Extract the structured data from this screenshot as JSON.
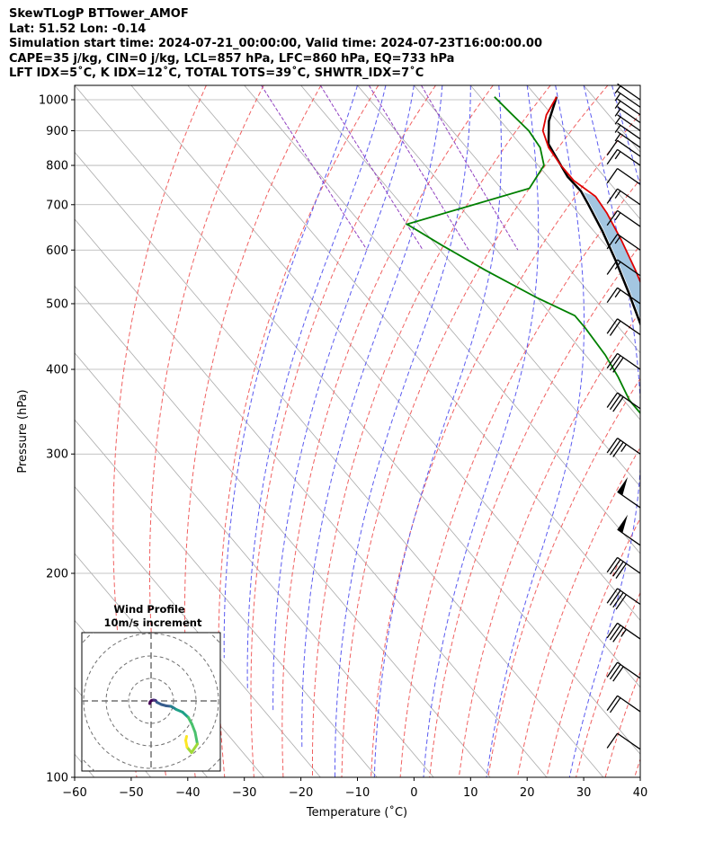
{
  "header": {
    "line1": "SkewTLogP BTTower_AMOF",
    "line2": "Lat: 51.52   Lon: -0.14",
    "line3": "Simulation start time: 2024-07-21_00:00:00, Valid time: 2024-07-23T16:00:00.00",
    "line4": "CAPE=35 j/kg, CIN=0 j/kg, LCL=857 hPa, LFC=860 hPa, EQ=733 hPa",
    "line5": "LFT IDX=5˚C, K IDX=12˚C, TOTAL TOTS=39˚C, SHWTR_IDX=7˚C"
  },
  "chart_data": {
    "type": "line",
    "xlabel": "Temperature (˚C)",
    "ylabel": "Pressure (hPa)",
    "xlim": [
      -60,
      40
    ],
    "ylim": [
      1050,
      100
    ],
    "y_scale": "log",
    "grid": true,
    "x_ticks": [
      "−60",
      "−50",
      "−40",
      "−30",
      "−20",
      "−10",
      "0",
      "10",
      "20",
      "30",
      "40"
    ],
    "y_ticks": [
      "1000",
      "900",
      "800",
      "700",
      "600",
      "500",
      "400",
      "300",
      "200",
      "100"
    ],
    "colors": {
      "temperature": "#e00000",
      "dewpoint": "#008000",
      "parcel": "#000000",
      "cape_fill": "#a3c6e1",
      "dry_adiabats": "#f06060",
      "moist_adiabats": "#5a5af0",
      "mixing_ratio": "#9040c0",
      "isotherms": "#aaaaaa"
    },
    "series": [
      {
        "name": "temperature",
        "points": [
          [
            23.5,
            1010
          ],
          [
            19,
            950
          ],
          [
            16,
            900
          ],
          [
            14.5,
            850
          ],
          [
            14,
            800
          ],
          [
            14,
            760
          ],
          [
            15.5,
            720
          ],
          [
            15,
            680
          ],
          [
            13.5,
            620
          ],
          [
            11.5,
            560
          ],
          [
            9,
            500
          ],
          [
            5.5,
            450
          ],
          [
            2,
            400
          ],
          [
            0,
            350
          ],
          [
            -1.5,
            320
          ],
          [
            -3,
            290
          ],
          [
            -4.5,
            260
          ],
          [
            -6,
            240
          ],
          [
            -5,
            220
          ],
          [
            -2.5,
            200
          ],
          [
            0,
            180
          ],
          [
            1,
            165
          ],
          [
            5,
            150
          ],
          [
            9,
            135
          ],
          [
            11,
            125
          ],
          [
            12.5,
            115
          ],
          [
            14,
            100
          ]
        ]
      },
      {
        "name": "dewpoint",
        "points": [
          [
            12.5,
            1010
          ],
          [
            13,
            950
          ],
          [
            13.5,
            900
          ],
          [
            13,
            850
          ],
          [
            11,
            800
          ],
          [
            5,
            740
          ],
          [
            -22,
            655
          ],
          [
            -19,
            610
          ],
          [
            -15,
            560
          ],
          [
            -10,
            510
          ],
          [
            -6,
            480
          ],
          [
            -6,
            460
          ],
          [
            -6.5,
            420
          ],
          [
            -7.5,
            390
          ],
          [
            -9,
            360
          ],
          [
            -9,
            330
          ],
          [
            -8,
            300
          ],
          [
            -6,
            290
          ],
          [
            -4,
            280
          ],
          [
            -4.5,
            260
          ],
          [
            -3,
            240
          ],
          [
            -2,
            200
          ],
          [
            0,
            180
          ],
          [
            -1,
            160
          ],
          [
            -1,
            145
          ],
          [
            1,
            135
          ],
          [
            3,
            120
          ],
          [
            8,
            100
          ]
        ]
      },
      {
        "name": "parcel",
        "points": [
          [
            23.5,
            1010
          ],
          [
            18.5,
            930
          ],
          [
            15,
            860
          ],
          [
            14.5,
            830
          ],
          [
            13.5,
            770
          ],
          [
            13.7,
            733
          ],
          [
            13,
            700
          ],
          [
            11.5,
            640
          ],
          [
            9.5,
            580
          ],
          [
            7,
            520
          ],
          [
            4,
            460
          ],
          [
            0,
            400
          ],
          [
            -4.5,
            350
          ],
          [
            -9,
            300
          ],
          [
            -15,
            250
          ],
          [
            -22,
            200
          ],
          [
            -27,
            170
          ],
          [
            -31,
            150
          ],
          [
            -36,
            130
          ],
          [
            -42,
            110
          ],
          [
            -45,
            100
          ]
        ]
      }
    ],
    "wind_barbs": [
      {
        "p": 1000,
        "speed_kt": 5
      },
      {
        "p": 975,
        "speed_kt": 5
      },
      {
        "p": 950,
        "speed_kt": 5
      },
      {
        "p": 925,
        "speed_kt": 5
      },
      {
        "p": 900,
        "speed_kt": 5
      },
      {
        "p": 875,
        "speed_kt": 5
      },
      {
        "p": 850,
        "speed_kt": 5
      },
      {
        "p": 825,
        "speed_kt": 10
      },
      {
        "p": 800,
        "speed_kt": 15
      },
      {
        "p": 750,
        "speed_kt": 10
      },
      {
        "p": 700,
        "speed_kt": 15
      },
      {
        "p": 650,
        "speed_kt": 15
      },
      {
        "p": 600,
        "speed_kt": 15
      },
      {
        "p": 550,
        "speed_kt": 15
      },
      {
        "p": 500,
        "speed_kt": 15
      },
      {
        "p": 450,
        "speed_kt": 20
      },
      {
        "p": 400,
        "speed_kt": 30
      },
      {
        "p": 350,
        "speed_kt": 30
      },
      {
        "p": 300,
        "speed_kt": 35
      },
      {
        "p": 250,
        "speed_kt": 50
      },
      {
        "p": 220,
        "speed_kt": 50
      },
      {
        "p": 200,
        "speed_kt": 40
      },
      {
        "p": 180,
        "speed_kt": 40
      },
      {
        "p": 160,
        "speed_kt": 35
      },
      {
        "p": 140,
        "speed_kt": 30
      },
      {
        "p": 125,
        "speed_kt": 20
      },
      {
        "p": 110,
        "speed_kt": 10
      }
    ]
  },
  "hodograph": {
    "title": "Wind Profile",
    "subtitle": "10m/s increment",
    "points": [
      [
        -0.3,
        -0.6
      ],
      [
        -0.2,
        -0.2
      ],
      [
        0.1,
        0.1
      ],
      [
        0.6,
        0.2
      ],
      [
        1.0,
        0.1
      ],
      [
        1.3,
        -0.3
      ],
      [
        2.3,
        -0.8
      ],
      [
        3.4,
        -1.1
      ],
      [
        4.4,
        -1.2
      ],
      [
        4.8,
        -1.4
      ],
      [
        5.6,
        -1.9
      ],
      [
        7.0,
        -2.5
      ],
      [
        8.3,
        -3.7
      ],
      [
        9.1,
        -5.2
      ],
      [
        9.8,
        -7.0
      ],
      [
        10.3,
        -9.6
      ],
      [
        9.0,
        -11.5
      ],
      [
        8.0,
        -10.3
      ],
      [
        7.7,
        -8.8
      ],
      [
        7.9,
        -7.9
      ]
    ]
  }
}
